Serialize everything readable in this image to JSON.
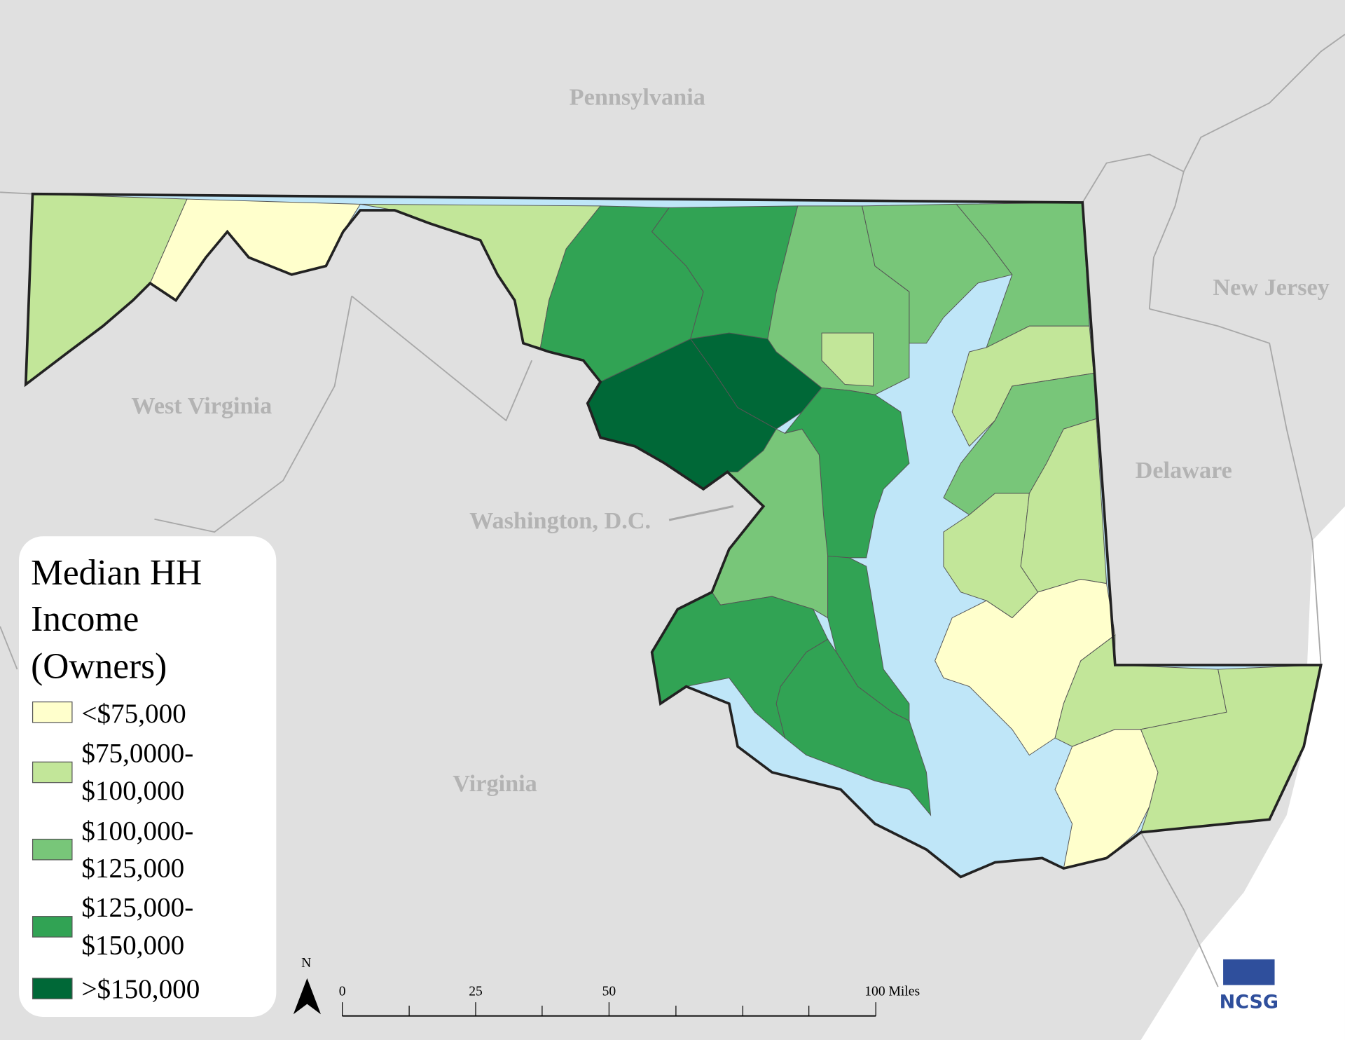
{
  "map_labels": [
    {
      "text": "Pennsylvania"
    },
    {
      "text": "West Virginia"
    },
    {
      "text": "Washington, D.C."
    },
    {
      "text": "Virginia"
    },
    {
      "text": "Delaware"
    },
    {
      "text": "New Jersey"
    }
  ],
  "legend": {
    "title": [
      "Median HH",
      "Income",
      "(Owners)"
    ],
    "items": [
      {
        "lines": [
          "<$75,000"
        ],
        "color": "#ffffcc"
      },
      {
        "lines": [
          "$75,0000-",
          "$100,000"
        ],
        "color": "#c2e699"
      },
      {
        "lines": [
          "$100,000-",
          "$125,000"
        ],
        "color": "#78c679"
      },
      {
        "lines": [
          "$125,000-",
          "$150,000"
        ],
        "color": "#31a354"
      },
      {
        "lines": [
          ">$150,000"
        ],
        "color": "#006837"
      }
    ]
  },
  "scale_bar": {
    "ticks": [
      {
        "value": 0,
        "label": "0"
      },
      {
        "value": 25,
        "label": "25"
      },
      {
        "value": 50,
        "label": "50"
      },
      {
        "value": 100,
        "label": "100 Miles"
      }
    ]
  },
  "north_arrow": "N",
  "logo": "NCSG"
}
